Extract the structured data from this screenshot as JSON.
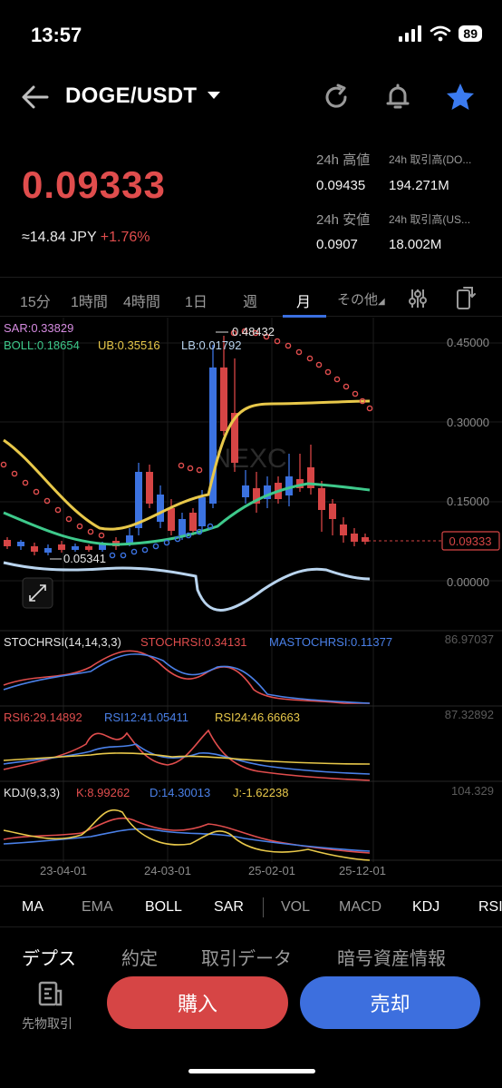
{
  "status": {
    "time": "13:57",
    "battery": "89"
  },
  "header": {
    "pair": "DOGE/USDT"
  },
  "price": {
    "last": "0.09333",
    "approx_prefix": "≈14.84 JPY",
    "change": "+1.76%"
  },
  "stats": {
    "high_label": "24h 高値",
    "high_value": "0.09435",
    "vol_base_label": "24h 取引高(DO...",
    "vol_base_value": "194.271M",
    "low_label": "24h 安値",
    "low_value": "0.0907",
    "vol_quote_label": "24h 取引高(US...",
    "vol_quote_value": "18.002M"
  },
  "time_tabs": {
    "t15m": "15分",
    "t1h": "1時間",
    "t4h": "4時間",
    "t1d": "1日",
    "t1w": "週",
    "t1mo": "月",
    "more": "その他"
  },
  "chart": {
    "sar_label": "SAR:0.33829",
    "boll_label": "BOLL:0.18654",
    "ub_label": "UB:0.35516",
    "lb_label": "LB:0.01792",
    "high_mark": "0.48432",
    "low_mark": "0.05341",
    "price_tag": "0.09333",
    "y_ticks": [
      "0.45000",
      "0.30000",
      "0.15000",
      "0.00000"
    ],
    "stochrsi_label": "STOCHRSI(14,14,3,3)",
    "stochrsi_val": "STOCHRSI:0.34131",
    "mastochrsi_val": "MASTOCHRSI:0.11377",
    "stoch_max": "86.97037",
    "rsi6": "RSI6:29.14892",
    "rsi12": "RSI12:41.05411",
    "rsi24": "RSI24:46.66663",
    "rsi_max": "87.32892",
    "kdj_label": "KDJ(9,3,3)",
    "kdj_k": "K:8.99262",
    "kdj_d": "D:14.30013",
    "kdj_j": "J:-1.62238",
    "kdj_max": "104.329",
    "x_dates": [
      "23-04-01",
      "24-03-01",
      "25-02-01",
      "25-12-01"
    ],
    "colors": {
      "up": "#3b72e0",
      "down": "#d64545",
      "sar": "#e04d4d",
      "boll": "#3ec98b",
      "ub": "#e8c84a",
      "lb": "#b9d4ee"
    }
  },
  "indicator_tabs": [
    "MA",
    "EMA",
    "BOLL",
    "SAR",
    "VOL",
    "MACD",
    "KDJ",
    "RSI"
  ],
  "bottom_tabs": [
    "デプス",
    "約定",
    "取引データ",
    "暗号資産情報"
  ],
  "actions": {
    "futures": "先物取引",
    "buy": "購入",
    "sell": "売却"
  }
}
